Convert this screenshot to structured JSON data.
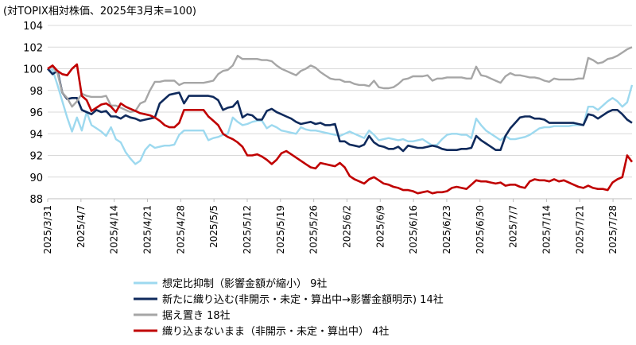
{
  "chart_data": {
    "type": "line",
    "title": "(対TOPIX相対株価、2025年3月末=100)",
    "xlabel": "",
    "ylabel": "",
    "ylim": [
      88,
      104
    ],
    "yticks": [
      88,
      90,
      92,
      94,
      96,
      98,
      100,
      102,
      104
    ],
    "grid": "horizontal",
    "legend_position": "bottom",
    "x_tick_labels": [
      "2025/3/31",
      "2025/4/7",
      "2025/4/14",
      "2025/4/21",
      "2025/4/28",
      "2025/5/5",
      "2025/5/12",
      "2025/5/19",
      "2025/5/26",
      "2025/6/2",
      "2025/6/9",
      "2025/6/16",
      "2025/6/23",
      "2025/6/30",
      "2025/7/7",
      "2025/7/14",
      "2025/7/21",
      "2025/7/28"
    ],
    "x_start": "2025/3/31",
    "x_end": "2025/8/1",
    "series": [
      {
        "name": "想定比抑制（影響金額が縮小） 9社",
        "color": "#9dd9ef",
        "values": [
          100.0,
          99.9,
          98.5,
          97.0,
          95.5,
          94.2,
          95.5,
          94.3,
          96.0,
          94.8,
          94.5,
          94.2,
          93.8,
          94.6,
          93.5,
          93.2,
          92.3,
          91.7,
          91.2,
          91.5,
          92.5,
          93.0,
          92.7,
          92.8,
          92.9,
          92.9,
          93.0,
          93.9,
          94.3,
          94.3,
          94.3,
          94.3,
          94.3,
          93.4,
          93.6,
          93.7,
          93.9,
          94.0,
          95.5,
          95.1,
          94.8,
          94.9,
          95.1,
          95.2,
          95.2,
          94.5,
          94.8,
          94.6,
          94.3,
          94.2,
          94.1,
          94.0,
          94.6,
          94.4,
          94.3,
          94.3,
          94.2,
          94.1,
          94.0,
          93.9,
          93.8,
          94.0,
          94.2,
          94.0,
          93.8,
          93.6,
          94.3,
          93.9,
          93.4,
          93.5,
          93.6,
          93.5,
          93.4,
          93.5,
          93.3,
          93.3,
          93.4,
          93.5,
          93.2,
          92.9,
          93.0,
          93.5,
          93.9,
          94.0,
          94.0,
          93.9,
          93.9,
          93.6,
          95.4,
          94.8,
          94.3,
          94.0,
          93.7,
          93.4,
          93.8,
          93.5,
          93.5,
          93.6,
          93.7,
          93.9,
          94.2,
          94.5,
          94.6,
          94.6,
          94.7,
          94.7,
          94.7,
          94.7,
          94.8,
          94.8,
          94.8,
          96.5,
          96.5,
          96.2,
          96.6,
          97.0,
          97.3,
          97.0,
          96.5,
          96.9,
          98.5
        ]
      },
      {
        "name": "新たに織り込む(非開示・未定・算出中→影響金額明示) 14社",
        "color": "#0f2a5c",
        "values": [
          100.0,
          99.5,
          99.8,
          97.8,
          97.2,
          97.3,
          97.3,
          96.2,
          96.0,
          95.8,
          96.2,
          96.0,
          96.1,
          95.6,
          95.6,
          95.4,
          95.7,
          95.5,
          95.4,
          95.2,
          95.3,
          95.4,
          95.5,
          96.8,
          97.2,
          97.6,
          97.7,
          97.8,
          96.8,
          97.5,
          97.5,
          97.5,
          97.5,
          97.5,
          97.4,
          97.1,
          96.2,
          96.4,
          96.5,
          97.0,
          95.5,
          95.8,
          95.7,
          95.3,
          95.3,
          96.1,
          96.3,
          96.0,
          95.8,
          95.6,
          95.4,
          95.1,
          94.9,
          95.0,
          95.1,
          94.9,
          95.0,
          94.8,
          94.8,
          94.9,
          93.3,
          93.3,
          93.0,
          92.9,
          92.8,
          93.0,
          93.8,
          93.2,
          92.9,
          92.8,
          92.6,
          92.6,
          92.8,
          92.4,
          92.9,
          92.8,
          92.7,
          92.7,
          92.8,
          92.9,
          92.8,
          92.6,
          92.5,
          92.5,
          92.5,
          92.6,
          92.6,
          92.7,
          93.8,
          93.4,
          93.1,
          92.8,
          92.5,
          92.5,
          93.8,
          94.5,
          95.0,
          95.5,
          95.6,
          95.6,
          95.4,
          95.4,
          95.3,
          95.0,
          95.0,
          95.0,
          95.0,
          95.0,
          95.0,
          94.9,
          94.8,
          95.8,
          95.7,
          95.4,
          95.7,
          96.0,
          96.2,
          96.2,
          95.8,
          95.3,
          95.0
        ]
      },
      {
        "name": "据え置き 18社",
        "color": "#a6a6a6",
        "values": [
          100.0,
          100.2,
          99.6,
          97.8,
          97.3,
          96.5,
          97.0,
          97.7,
          97.5,
          97.4,
          97.4,
          97.4,
          97.5,
          96.6,
          96.6,
          96.4,
          96.2,
          96.0,
          96.1,
          96.8,
          97.0,
          98.0,
          98.8,
          98.8,
          98.9,
          98.9,
          98.9,
          98.5,
          98.7,
          98.7,
          98.7,
          98.7,
          98.7,
          98.8,
          98.9,
          99.5,
          99.8,
          99.9,
          100.3,
          101.2,
          100.9,
          100.9,
          100.9,
          100.9,
          100.8,
          100.8,
          100.7,
          100.3,
          100.0,
          99.8,
          99.6,
          99.4,
          99.8,
          100.0,
          100.3,
          100.1,
          99.7,
          99.4,
          99.1,
          99.0,
          99.0,
          98.8,
          98.8,
          98.6,
          98.5,
          98.5,
          98.4,
          98.9,
          98.3,
          98.2,
          98.2,
          98.3,
          98.6,
          99.0,
          99.1,
          99.3,
          99.3,
          99.3,
          99.4,
          98.9,
          99.1,
          99.1,
          99.2,
          99.2,
          99.2,
          99.2,
          99.1,
          99.1,
          100.2,
          99.4,
          99.3,
          99.1,
          98.9,
          98.7,
          99.3,
          99.6,
          99.4,
          99.4,
          99.3,
          99.2,
          99.2,
          99.1,
          98.9,
          98.8,
          99.1,
          99.0,
          99.0,
          99.0,
          99.0,
          99.1,
          99.1,
          101.0,
          100.8,
          100.5,
          100.6,
          100.9,
          101.0,
          101.2,
          101.5,
          101.8,
          102.0
        ]
      },
      {
        "name": "織り込まないまま（非開示・未定・算出中） 4社",
        "color": "#c00000",
        "values": [
          100.0,
          100.3,
          99.8,
          99.5,
          99.4,
          100.0,
          100.4,
          97.5,
          97.1,
          96.1,
          96.4,
          96.7,
          96.8,
          96.5,
          96.0,
          96.8,
          96.5,
          96.3,
          96.1,
          95.9,
          95.8,
          95.7,
          95.5,
          95.2,
          94.8,
          94.6,
          94.6,
          95.0,
          96.2,
          96.2,
          96.2,
          96.2,
          96.2,
          95.6,
          95.2,
          94.8,
          94.0,
          93.7,
          93.5,
          93.2,
          92.8,
          92.0,
          92.0,
          92.1,
          91.9,
          91.6,
          91.2,
          91.6,
          92.2,
          92.4,
          92.1,
          91.8,
          91.5,
          91.2,
          90.9,
          90.8,
          91.3,
          91.2,
          91.1,
          91.0,
          91.3,
          90.9,
          90.1,
          89.8,
          89.6,
          89.4,
          89.8,
          90.0,
          89.7,
          89.4,
          89.3,
          89.1,
          89.0,
          88.8,
          88.8,
          88.7,
          88.5,
          88.6,
          88.7,
          88.5,
          88.6,
          88.6,
          88.7,
          89.0,
          89.1,
          89.0,
          88.9,
          89.3,
          89.7,
          89.6,
          89.6,
          89.5,
          89.4,
          89.5,
          89.2,
          89.3,
          89.3,
          89.1,
          89.0,
          89.6,
          89.8,
          89.7,
          89.7,
          89.6,
          89.8,
          89.6,
          89.7,
          89.5,
          89.3,
          89.1,
          89.0,
          89.2,
          89.0,
          88.9,
          88.9,
          88.8,
          89.5,
          89.8,
          90.0,
          92.0,
          91.4
        ]
      }
    ]
  }
}
